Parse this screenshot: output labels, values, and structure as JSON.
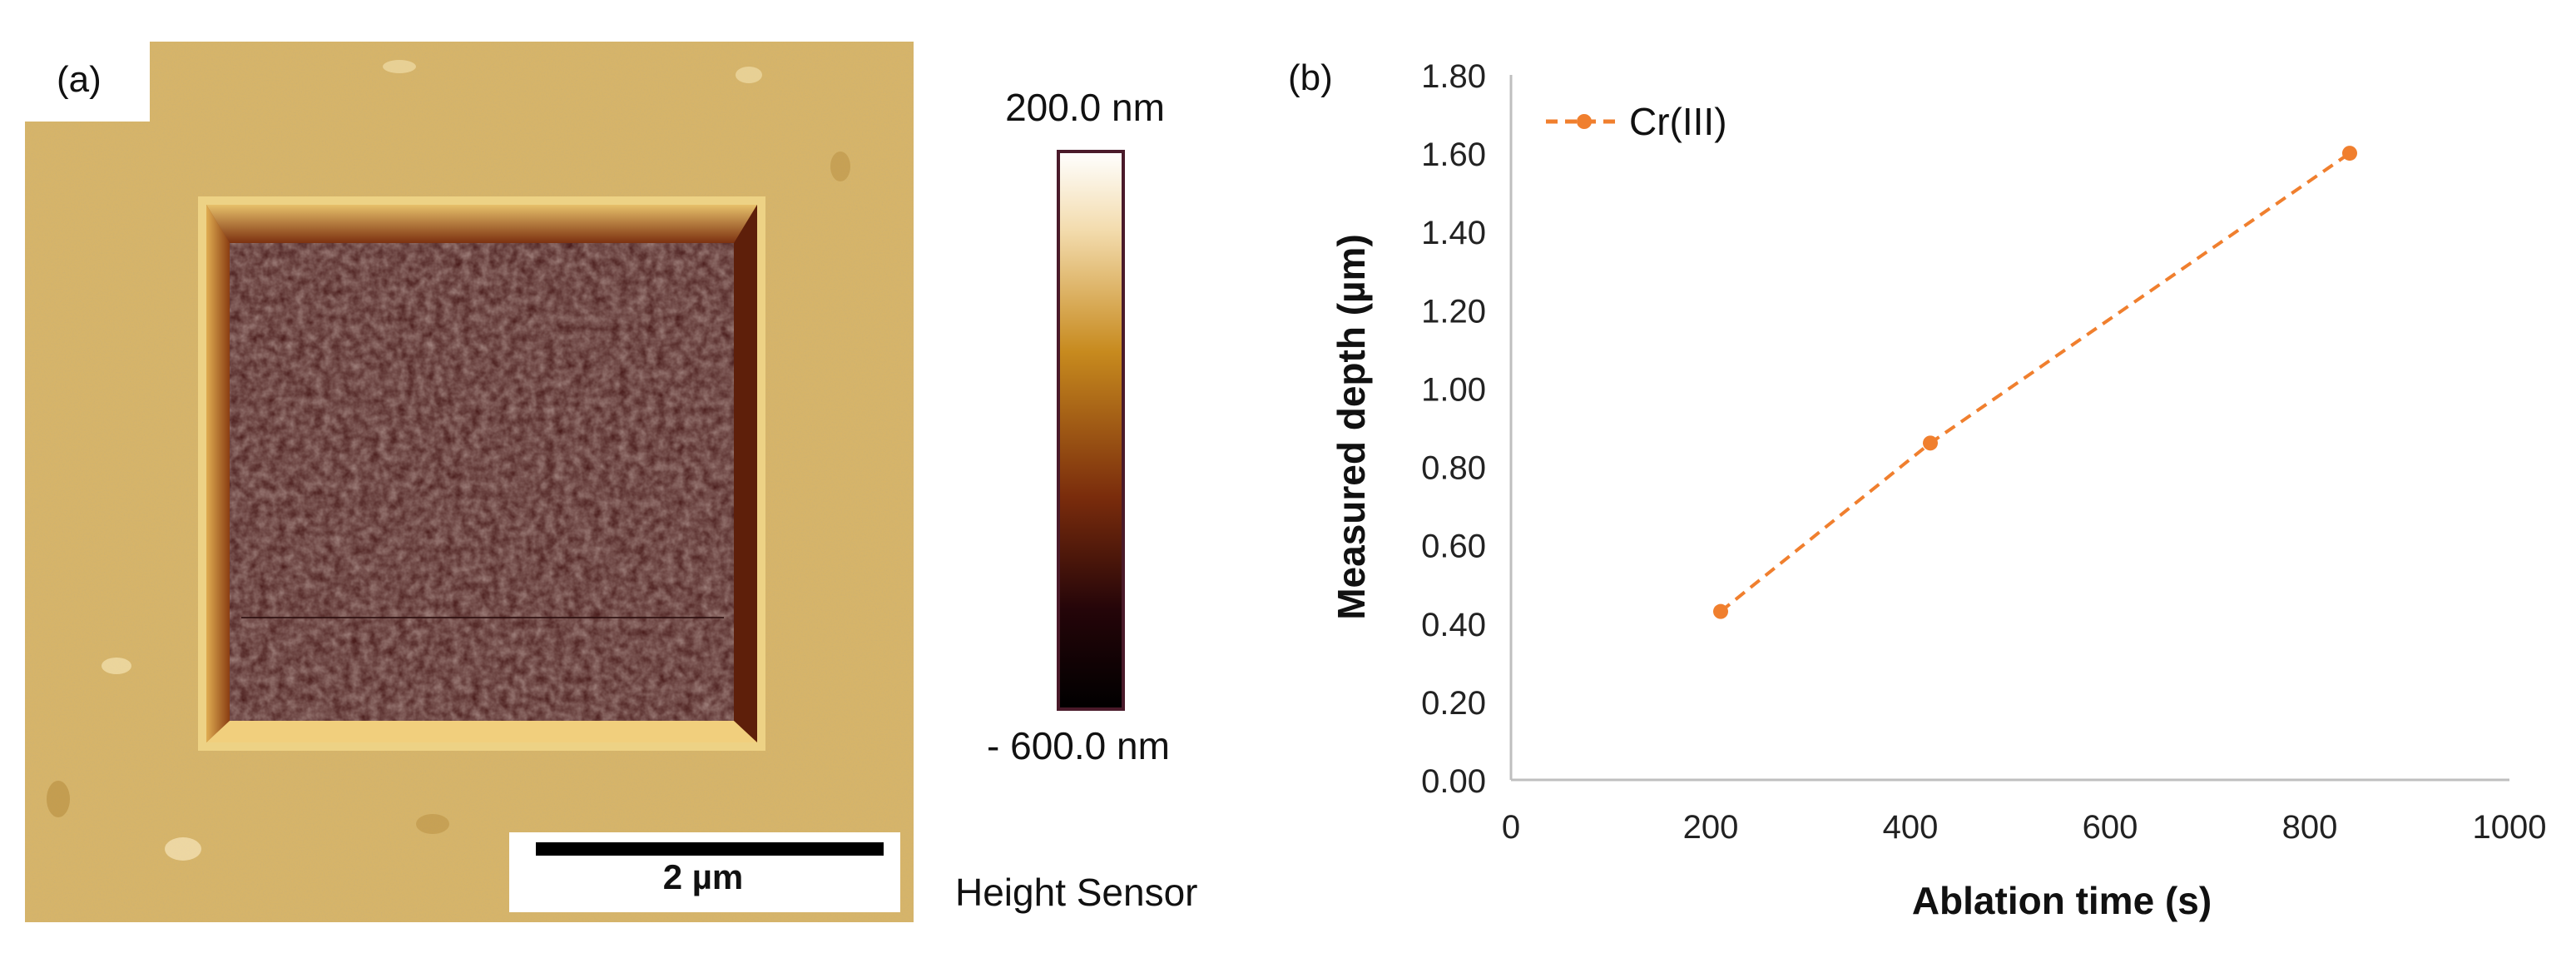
{
  "panel_a": {
    "label": "(a)",
    "scalebar_label": "2 µm",
    "colorbar": {
      "max_label": "200.0 nm",
      "min_label": "- 600.0 nm",
      "caption": "Height Sensor",
      "colors": [
        "#ffffff",
        "#f3dcae",
        "#c78a1e",
        "#7a2c0c",
        "#250509",
        "#000000"
      ]
    }
  },
  "panel_b": {
    "label": "(b)"
  },
  "chart_data": {
    "type": "line",
    "title": "",
    "xlabel": "Ablation time (s)",
    "ylabel": "Measured depth (µm)",
    "xlim": [
      0,
      1000
    ],
    "ylim": [
      0,
      1.8
    ],
    "xticks": [
      0,
      200,
      400,
      600,
      800,
      1000
    ],
    "xtick_labels": [
      "0",
      "200",
      "400",
      "600",
      "800",
      "1000"
    ],
    "yticks": [
      0,
      0.2,
      0.4,
      0.6,
      0.8,
      1.0,
      1.2,
      1.4,
      1.6,
      1.8
    ],
    "ytick_labels": [
      "0.00",
      "0.20",
      "0.40",
      "0.60",
      "0.80",
      "1.00",
      "1.20",
      "1.40",
      "1.60",
      "1.80"
    ],
    "grid": false,
    "legend_position": "top-left",
    "series": [
      {
        "name": "Cr(III)",
        "color": "#f07f2e",
        "line_style": "dashed",
        "marker": "circle",
        "x": [
          210,
          420,
          840
        ],
        "y": [
          0.43,
          0.86,
          1.6
        ]
      }
    ]
  }
}
